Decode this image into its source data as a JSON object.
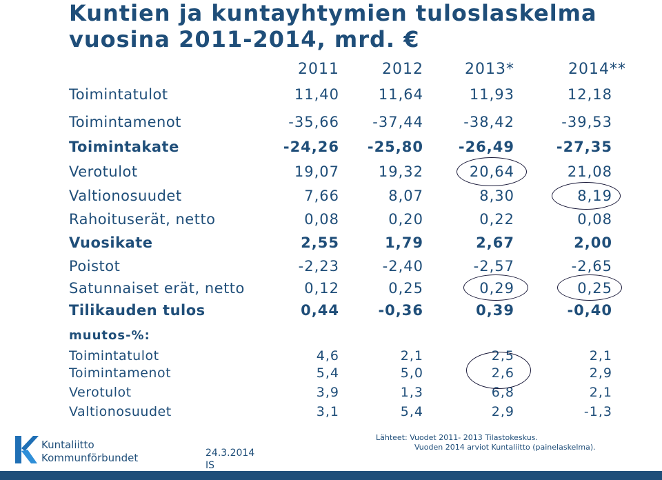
{
  "title": "Kuntien ja kuntayhtymien tuloslaskelma vuosina 2011-2014, mrd. €",
  "years": [
    "2011",
    "2012",
    "2013*",
    "2014**"
  ],
  "rows": [
    {
      "label": "Toimintatulot",
      "values": [
        "11,40",
        "11,64",
        "11,93",
        "12,18"
      ]
    },
    {
      "label": "Toimintamenot",
      "values": [
        "-35,66",
        "-37,44",
        "-38,42",
        "-39,53"
      ]
    },
    {
      "label": "Toimintakate",
      "values": [
        "-24,26",
        "-25,80",
        "-26,49",
        "-27,35"
      ]
    },
    {
      "label": "Verotulot",
      "values": [
        "19,07",
        "19,32",
        "20,64",
        "21,08"
      ]
    },
    {
      "label": "Valtionosuudet",
      "values": [
        "7,66",
        "8,07",
        "8,30",
        "8,19"
      ]
    },
    {
      "label": "Rahoituserät, netto",
      "values": [
        "0,08",
        "0,20",
        "0,22",
        "0,08"
      ]
    },
    {
      "label": "Vuosikate",
      "values": [
        "2,55",
        "1,79",
        "2,67",
        "2,00"
      ]
    },
    {
      "label": "Poistot",
      "values": [
        "-2,23",
        "-2,40",
        "-2,57",
        "-2,65"
      ]
    },
    {
      "label": "Satunnaiset erät, netto",
      "values": [
        "0,12",
        "0,25",
        "0,29",
        "0,25"
      ]
    },
    {
      "label": "Tilikauden tulos",
      "values": [
        "0,44",
        "-0,36",
        "0,39",
        "-0,40"
      ]
    }
  ],
  "change_section_label": "muutos-%:",
  "change_rows": [
    {
      "label": "Toimintatulot",
      "values": [
        "4,6",
        "2,1",
        "2,5",
        "2,1"
      ]
    },
    {
      "label": "Toimintamenot",
      "values": [
        "5,4",
        "5,0",
        "2,6",
        "2,9"
      ]
    },
    {
      "label": "Verotulot",
      "values": [
        "3,9",
        "1,3",
        "6,8",
        "2,1"
      ]
    },
    {
      "label": "Valtionosuudet",
      "values": [
        "3,1",
        "5,4",
        "2,9",
        "-1,3"
      ]
    }
  ],
  "footer": {
    "logo_line1": "Kuntaliitto",
    "logo_line2": "Kommunförbundet",
    "date": "24.3.2014",
    "initials": "IS",
    "source_line1": "Lähteet: Vuodet 2011- 2013 Tilastokeskus.",
    "source_line2": "Vuoden 2014 arviot Kuntaliitto (painelaskelma)."
  },
  "colors": {
    "text": "#1f4e79",
    "bar": "#1f4e79",
    "circle": "#1a1a3a"
  }
}
